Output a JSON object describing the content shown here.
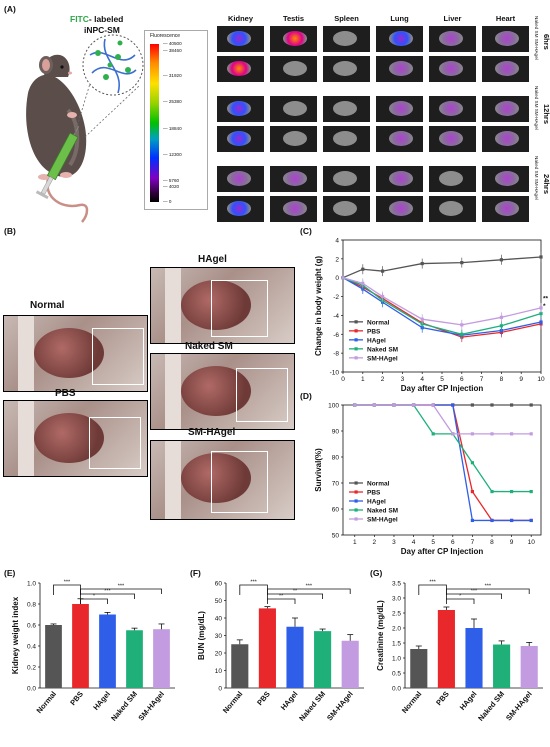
{
  "panel_labels": {
    "a": "(A)",
    "b": "(B)",
    "c": "(C)",
    "d": "(D)",
    "e": "(E)",
    "f": "(F)",
    "g": "(G)"
  },
  "panel_a": {
    "label_fitc": "FITC",
    "label_rest": "- labeled",
    "label_line2": "iNPC-SM",
    "colorbar_title": "Fluorescence",
    "colorbar_ticks": [
      "40500",
      "38460",
      "31920",
      "25380",
      "18840",
      "12300",
      "5760",
      "4020",
      "0"
    ],
    "organs": [
      "Kidney",
      "Testis",
      "Spleen",
      "Lung",
      "Liver",
      "Heart"
    ],
    "timepoints": [
      "6hrs",
      "12hrs",
      "24hrs"
    ],
    "row_labels": [
      "Naked SM",
      "SM-HAgel"
    ]
  },
  "panel_b": {
    "normal": "Normal",
    "pbs": "PBS",
    "hagel": "HAgel",
    "naked": "Naked SM",
    "smhagel": "SM-HAgel"
  },
  "colors": {
    "Normal": "#555555",
    "PBS": "#e8282b",
    "HAgel": "#2f5ee8",
    "Naked SM": "#1fb07a",
    "SM-HAgel": "#c39be0"
  },
  "chart_data": [
    {
      "id": "C",
      "type": "line",
      "xlabel": "Day after CP Injection",
      "ylabel": "Change in body weight (g)",
      "x": [
        0,
        1,
        2,
        4,
        6,
        8,
        10
      ],
      "xticks": [
        0,
        1,
        2,
        3,
        4,
        5,
        6,
        7,
        8,
        9,
        10
      ],
      "yticks": [
        4,
        2,
        0,
        -2,
        -4,
        -6,
        -8,
        -10
      ],
      "ylim": [
        -10,
        4
      ],
      "xlim": [
        0,
        10
      ],
      "series": [
        {
          "name": "Normal",
          "values": [
            0,
            0.9,
            0.7,
            1.5,
            1.6,
            1.9,
            2.2
          ]
        },
        {
          "name": "PBS",
          "values": [
            0,
            -1.0,
            -2.2,
            -4.8,
            -6.3,
            -5.8,
            -4.9
          ]
        },
        {
          "name": "HAgel",
          "values": [
            0,
            -1.2,
            -2.6,
            -5.3,
            -6.1,
            -5.6,
            -4.7
          ]
        },
        {
          "name": "Naked SM",
          "values": [
            0,
            -0.8,
            -2.4,
            -4.9,
            -6.0,
            -5.1,
            -3.8
          ]
        },
        {
          "name": "SM-HAgel",
          "values": [
            0,
            -0.6,
            -2.0,
            -4.4,
            -5.0,
            -4.2,
            -3.2
          ]
        }
      ],
      "annotations": [
        "**",
        "*"
      ],
      "legend": "bottom-left"
    },
    {
      "id": "D",
      "type": "line",
      "xlabel": "Day after CP Injection",
      "ylabel": "Survival(%)",
      "x": [
        1,
        2,
        3,
        4,
        5,
        6,
        7,
        8,
        9,
        10
      ],
      "xticks": [
        1,
        2,
        3,
        4,
        5,
        6,
        7,
        8,
        9,
        10
      ],
      "yticks": [
        100,
        90,
        80,
        70,
        60,
        50
      ],
      "ylim": [
        50,
        100
      ],
      "xlim": [
        0.4,
        10.5
      ],
      "series": [
        {
          "name": "Normal",
          "values": [
            100,
            100,
            100,
            100,
            100,
            100,
            100,
            100,
            100,
            100
          ]
        },
        {
          "name": "PBS",
          "values": [
            100,
            100,
            100,
            100,
            100,
            100,
            66.7,
            55.6,
            55.6,
            55.6
          ]
        },
        {
          "name": "HAgel",
          "values": [
            100,
            100,
            100,
            100,
            100,
            100,
            55.6,
            55.6,
            55.6,
            55.6
          ]
        },
        {
          "name": "Naked SM",
          "values": [
            100,
            100,
            100,
            100,
            88.9,
            88.9,
            77.8,
            66.7,
            66.7,
            66.7
          ]
        },
        {
          "name": "SM-HAgel",
          "values": [
            100,
            100,
            100,
            100,
            100,
            88.9,
            88.9,
            88.9,
            88.9,
            88.9
          ]
        }
      ],
      "legend": "bottom-left"
    },
    {
      "id": "E",
      "type": "bar",
      "ylabel": "Kidney weight index",
      "categories": [
        "Normal",
        "PBS",
        "HAgel",
        "Naked SM",
        "SM-HAgel"
      ],
      "values": [
        0.6,
        0.8,
        0.7,
        0.55,
        0.56
      ],
      "errors": [
        0.01,
        0.05,
        0.02,
        0.02,
        0.05
      ],
      "yticks": [
        0.0,
        0.2,
        0.4,
        0.6,
        0.8,
        1.0
      ],
      "ylim": [
        0,
        1.0
      ],
      "brackets": [
        {
          "from": 0,
          "to": 1,
          "label": "***"
        },
        {
          "from": 1,
          "to": 2,
          "label": "*"
        },
        {
          "from": 1,
          "to": 3,
          "label": "***"
        },
        {
          "from": 1,
          "to": 4,
          "label": "***"
        }
      ]
    },
    {
      "id": "F",
      "type": "bar",
      "ylabel": "BUN (mg/dL)",
      "categories": [
        "Normal",
        "PBS",
        "HAgel",
        "Naked SM",
        "SM-HAgel"
      ],
      "values": [
        25,
        45.5,
        35,
        32.5,
        27
      ],
      "errors": [
        2.5,
        1.0,
        5,
        1.2,
        3.5
      ],
      "yticks": [
        0,
        10,
        20,
        30,
        40,
        50,
        60
      ],
      "ylim": [
        0,
        60
      ],
      "brackets": [
        {
          "from": 0,
          "to": 1,
          "label": "***"
        },
        {
          "from": 1,
          "to": 2,
          "label": "**"
        },
        {
          "from": 1,
          "to": 3,
          "label": "**"
        },
        {
          "from": 1,
          "to": 4,
          "label": "***"
        }
      ]
    },
    {
      "id": "G",
      "type": "bar",
      "ylabel": "Creatinine (mg/dL)",
      "categories": [
        "Normal",
        "PBS",
        "HAgel",
        "Naked SM",
        "SM-HAgel"
      ],
      "values": [
        1.3,
        2.6,
        2.0,
        1.45,
        1.4
      ],
      "errors": [
        0.1,
        0.1,
        0.3,
        0.12,
        0.12
      ],
      "yticks": [
        0.0,
        0.5,
        1.0,
        1.5,
        2.0,
        2.5,
        3.0,
        3.5
      ],
      "ylim": [
        0,
        3.5
      ],
      "brackets": [
        {
          "from": 0,
          "to": 1,
          "label": "***"
        },
        {
          "from": 1,
          "to": 2,
          "label": "*"
        },
        {
          "from": 1,
          "to": 3,
          "label": "***"
        },
        {
          "from": 1,
          "to": 4,
          "label": "***"
        }
      ]
    }
  ]
}
